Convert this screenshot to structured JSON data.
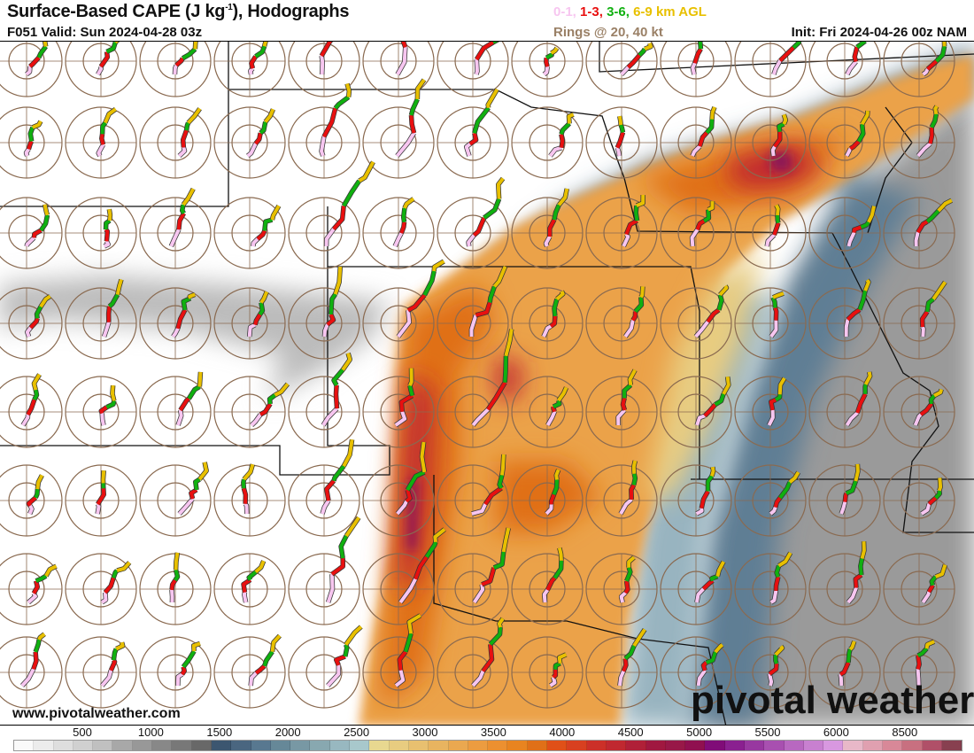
{
  "header": {
    "title": "Surface-Based CAPE (J kg",
    "title_sup": "-1",
    "title_end": "), Hodographs",
    "valid": "F051 Valid: Sun 2024-04-28 03z",
    "init": "Init: Fri 2024-04-26 00z NAM",
    "rings": "Rings @ 20, 40 kt",
    "legend": [
      {
        "label": "0-1,",
        "color": "#f7c6f0"
      },
      {
        "label": "1-3,",
        "color": "#e81010"
      },
      {
        "label": "3-6,",
        "color": "#10b010"
      },
      {
        "label": "6-9 km AGL",
        "color": "#e8c000"
      }
    ]
  },
  "footer": {
    "url": "www.pivotalweather.com",
    "logo": "pivotal weather"
  },
  "colorbar": {
    "labels": [
      "500",
      "1000",
      "1500",
      "2000",
      "2500",
      "3000",
      "3500",
      "4000",
      "4500",
      "5000",
      "5500",
      "6000",
      "8500"
    ],
    "colors": [
      "#fafafa",
      "#ececec",
      "#dedede",
      "#d0d0d0",
      "#c0c0c0",
      "#a8a8a8",
      "#989898",
      "#888888",
      "#787878",
      "#686868",
      "#3c5670",
      "#4a6680",
      "#587890",
      "#668898",
      "#7898a4",
      "#88a8b0",
      "#98b8c0",
      "#a8c8cc",
      "#e8d890",
      "#e8cc80",
      "#e8c070",
      "#e8b460",
      "#eaa850",
      "#ec9c40",
      "#ec9030",
      "#e88420",
      "#e07018",
      "#e05018",
      "#d84020",
      "#cc3028",
      "#c02830",
      "#b02038",
      "#a01840",
      "#981848",
      "#901050",
      "#800c78",
      "#8a2090",
      "#9838a0",
      "#a850b0",
      "#b868c0",
      "#c880d0",
      "#d898e0",
      "#e8b8c8",
      "#e0a0b0",
      "#d88898",
      "#c87080",
      "#b05068",
      "#884050"
    ]
  },
  "map": {
    "grid_cols": 13,
    "grid_rows": 8
  }
}
